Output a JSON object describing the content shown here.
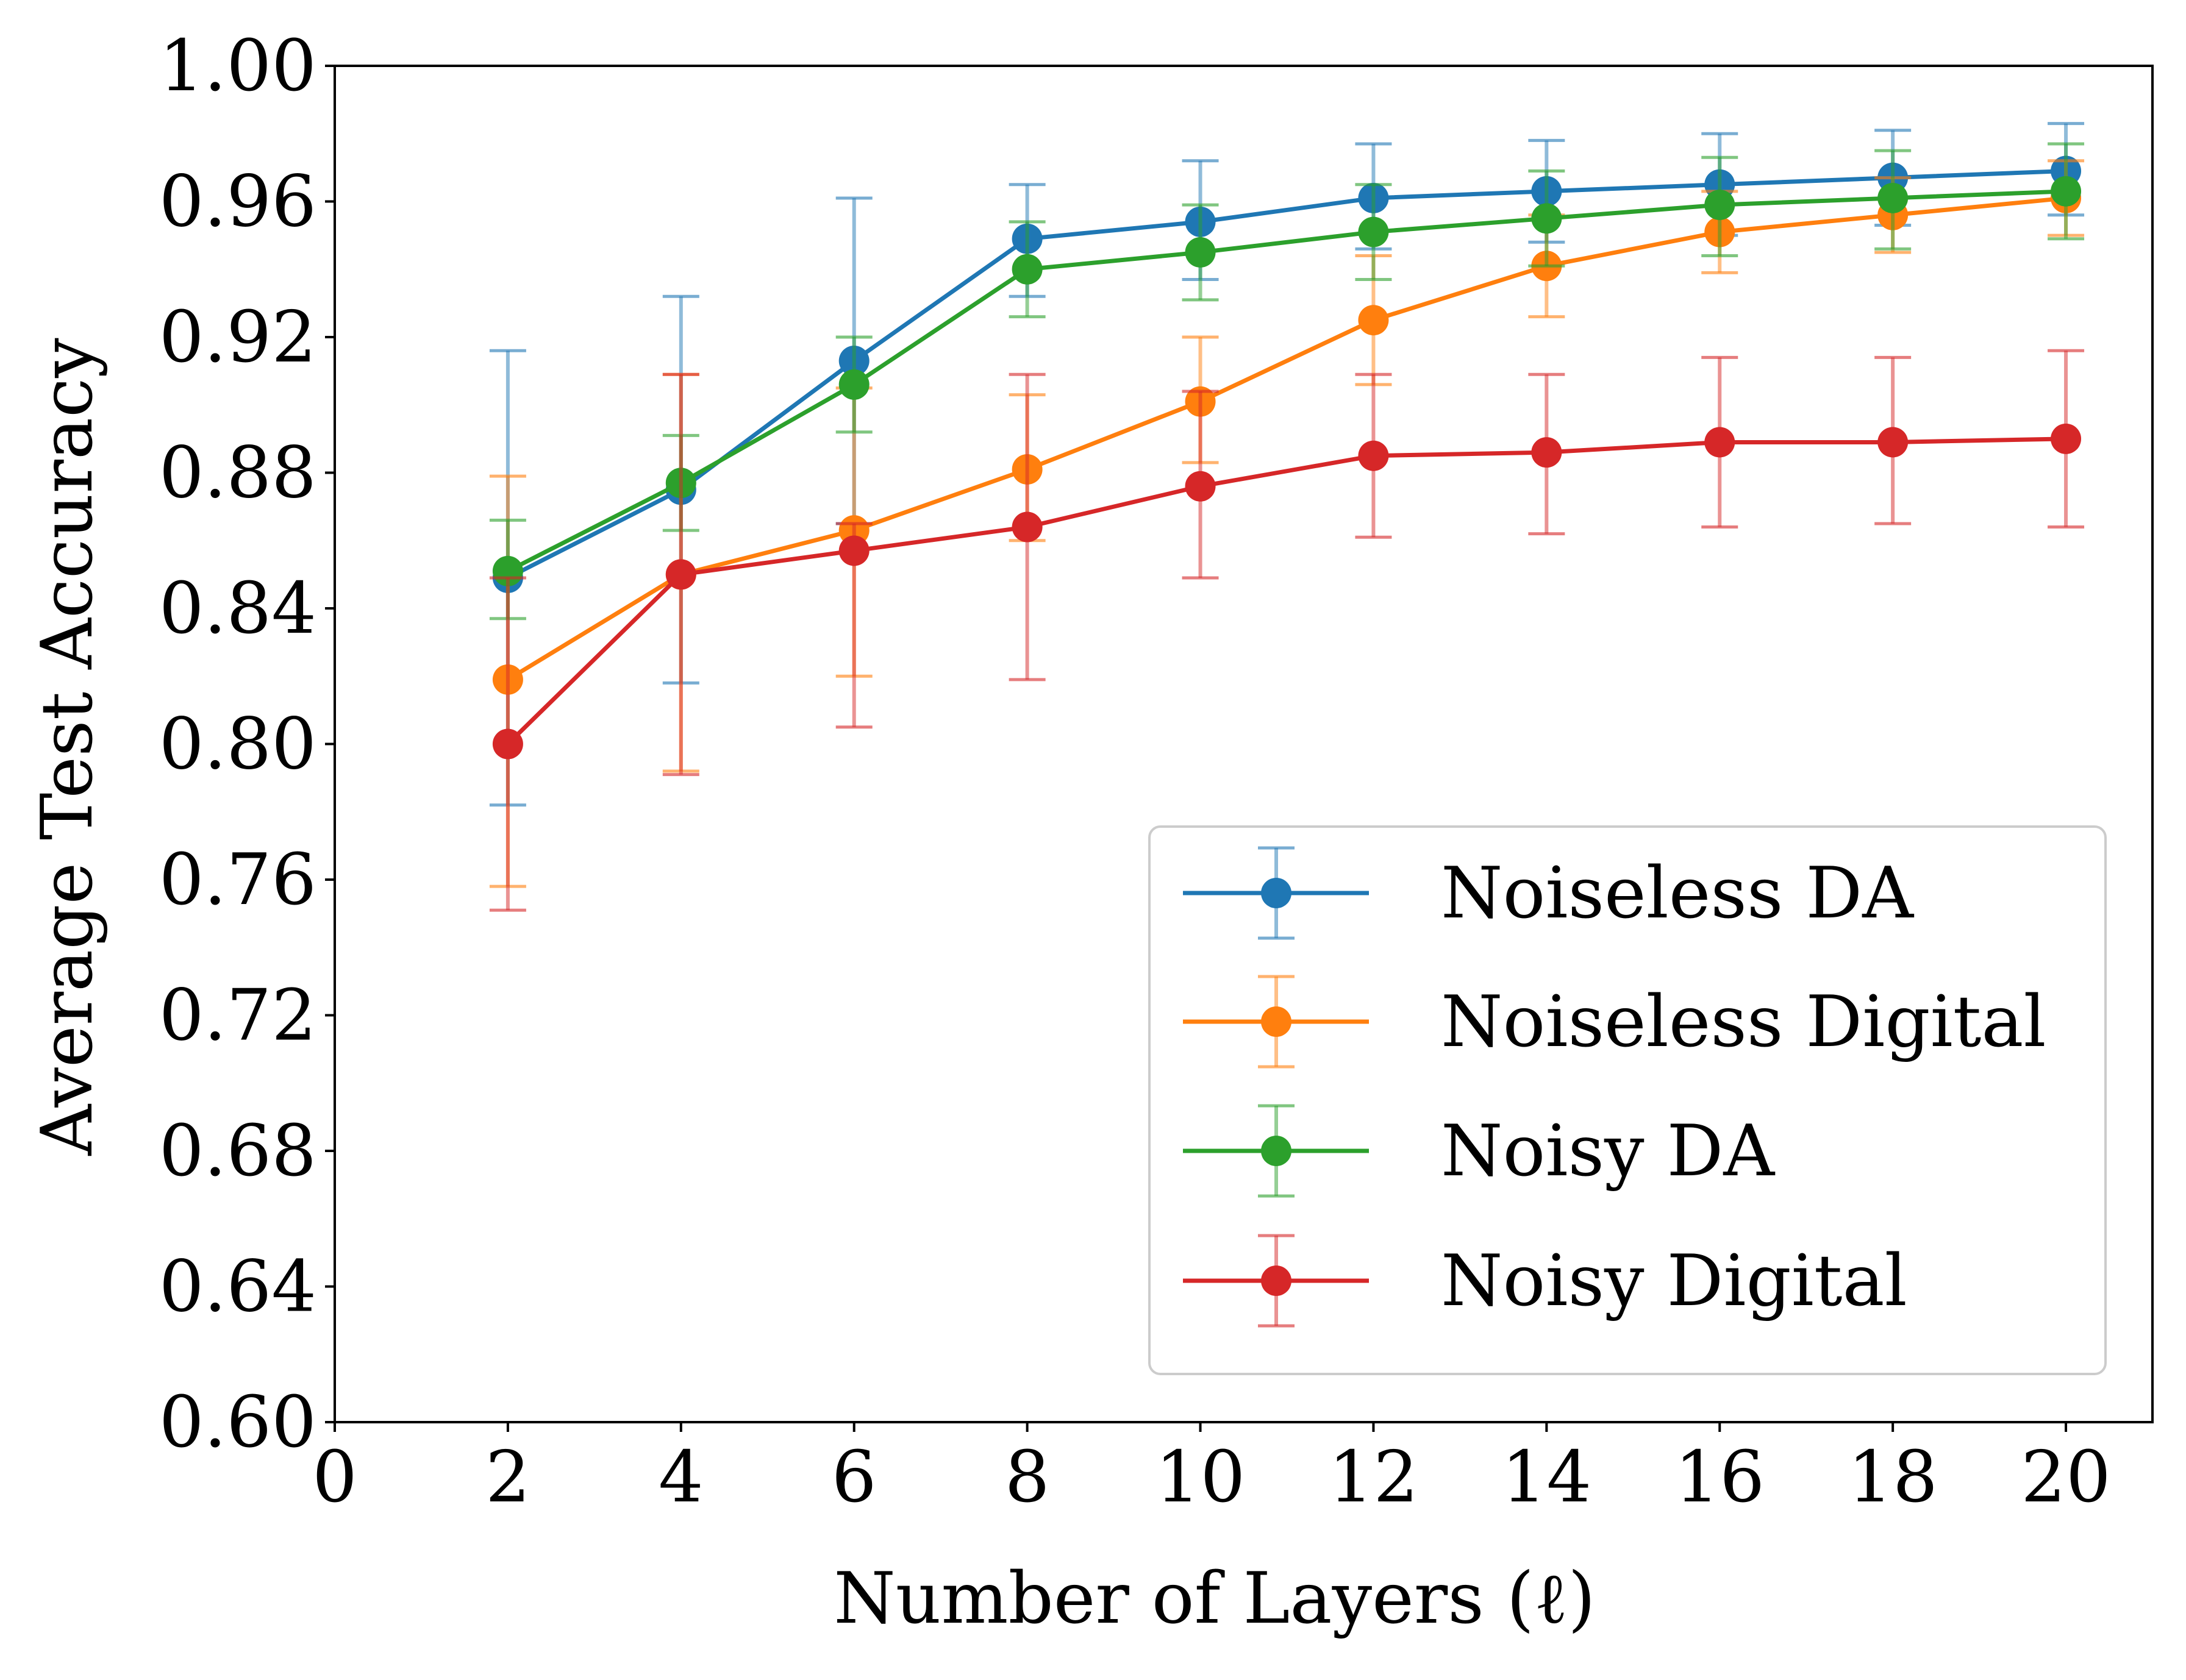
{
  "chart_data": {
    "type": "line",
    "xlabel": "Number of Layers (ℓ)",
    "ylabel": "Average Test Accuracy",
    "xlim": [
      0,
      21
    ],
    "ylim": [
      0.6,
      1.0
    ],
    "xticks": [
      "0",
      "2",
      "4",
      "6",
      "8",
      "10",
      "12",
      "14",
      "16",
      "18",
      "20"
    ],
    "yticks": [
      "0.60",
      "0.64",
      "0.68",
      "0.72",
      "0.76",
      "0.80",
      "0.84",
      "0.88",
      "0.92",
      "0.96",
      "1.00"
    ],
    "x": [
      2,
      4,
      6,
      8,
      10,
      12,
      14,
      16,
      18,
      20
    ],
    "grid": false,
    "legend_position": "lower-right",
    "series": [
      {
        "name": "Noiseless DA",
        "color": "#1f77b4",
        "values": [
          0.849,
          0.875,
          0.913,
          0.949,
          0.954,
          0.961,
          0.963,
          0.965,
          0.967,
          0.969
        ],
        "err_low": [
          0.782,
          0.818,
          0.865,
          0.932,
          0.937,
          0.946,
          0.948,
          0.95,
          0.953,
          0.956
        ],
        "err_high": [
          0.916,
          0.932,
          0.961,
          0.965,
          0.972,
          0.977,
          0.978,
          0.98,
          0.981,
          0.983
        ]
      },
      {
        "name": "Noiseless Digital",
        "color": "#ff7f0e",
        "values": [
          0.819,
          0.85,
          0.863,
          0.881,
          0.901,
          0.925,
          0.941,
          0.951,
          0.956,
          0.961
        ],
        "err_low": [
          0.758,
          0.792,
          0.82,
          0.86,
          0.883,
          0.906,
          0.926,
          0.939,
          0.945,
          0.95
        ],
        "err_high": [
          0.879,
          0.909,
          0.905,
          0.903,
          0.92,
          0.944,
          0.956,
          0.963,
          0.967,
          0.972
        ]
      },
      {
        "name": "Noisy DA",
        "color": "#2ca02c",
        "values": [
          0.851,
          0.877,
          0.906,
          0.94,
          0.945,
          0.951,
          0.955,
          0.959,
          0.961,
          0.963
        ],
        "err_low": [
          0.837,
          0.863,
          0.892,
          0.926,
          0.931,
          0.937,
          0.941,
          0.944,
          0.946,
          0.949
        ],
        "err_high": [
          0.866,
          0.891,
          0.92,
          0.954,
          0.959,
          0.965,
          0.969,
          0.973,
          0.975,
          0.977
        ]
      },
      {
        "name": "Noisy Digital",
        "color": "#d62728",
        "values": [
          0.8,
          0.85,
          0.857,
          0.864,
          0.876,
          0.885,
          0.886,
          0.889,
          0.889,
          0.89
        ],
        "err_low": [
          0.751,
          0.791,
          0.805,
          0.819,
          0.849,
          0.861,
          0.862,
          0.864,
          0.865,
          0.864
        ],
        "err_high": [
          0.849,
          0.909,
          0.865,
          0.909,
          0.904,
          0.909,
          0.909,
          0.914,
          0.914,
          0.916
        ]
      }
    ]
  }
}
